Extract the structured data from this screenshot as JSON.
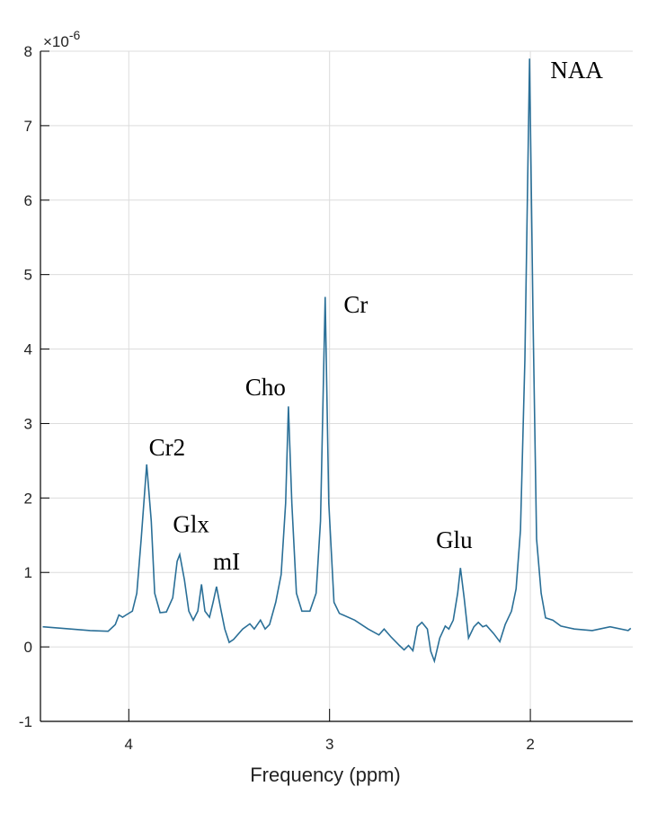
{
  "chart_data": {
    "type": "line",
    "title": "",
    "xlabel": "Frequency (ppm)",
    "ylabel": "",
    "y_exponent_label": "×10",
    "y_exponent_power": "-6",
    "xlim": [
      1.49,
      4.44
    ],
    "x_reversed": true,
    "ylim": [
      -1,
      8
    ],
    "xticks": [
      4,
      3,
      2
    ],
    "yticks": [
      -1,
      0,
      1,
      2,
      3,
      4,
      5,
      6,
      7,
      8
    ],
    "grid": true,
    "colors": {
      "line": "#2a6f97",
      "grid": "#dcdcdc",
      "axis": "#000000"
    },
    "series": [
      {
        "x": [
          4.429,
          4.192,
          4.103,
          4.067,
          4.049,
          4.031,
          4.013,
          3.982,
          3.96,
          3.938,
          3.911,
          3.888,
          3.871,
          3.844,
          3.813,
          3.781,
          3.759,
          3.746,
          3.723,
          3.701,
          3.679,
          3.656,
          3.638,
          3.621,
          3.598,
          3.58,
          3.563,
          3.54,
          3.522,
          3.5,
          3.478,
          3.433,
          3.397,
          3.375,
          3.344,
          3.321,
          3.299,
          3.268,
          3.241,
          3.219,
          3.205,
          3.188,
          3.165,
          3.138,
          3.098,
          3.067,
          3.045,
          3.022,
          3.004,
          2.978,
          2.951,
          2.875,
          2.808,
          2.754,
          2.728,
          2.696,
          2.652,
          2.629,
          2.607,
          2.585,
          2.563,
          2.54,
          2.513,
          2.496,
          2.478,
          2.451,
          2.424,
          2.406,
          2.384,
          2.362,
          2.348,
          2.33,
          2.308,
          2.281,
          2.259,
          2.237,
          2.219,
          2.183,
          2.152,
          2.125,
          2.094,
          2.071,
          2.049,
          2.027,
          2.004,
          1.987,
          1.969,
          1.946,
          1.924,
          1.888,
          1.848,
          1.781,
          1.692,
          1.603,
          1.513,
          1.5
        ],
        "y": [
          0.27,
          0.22,
          0.21,
          0.3,
          0.43,
          0.4,
          0.43,
          0.48,
          0.72,
          1.45,
          2.45,
          1.69,
          0.72,
          0.46,
          0.47,
          0.66,
          1.15,
          1.24,
          0.9,
          0.48,
          0.36,
          0.48,
          0.84,
          0.48,
          0.4,
          0.6,
          0.81,
          0.48,
          0.24,
          0.06,
          0.1,
          0.24,
          0.31,
          0.24,
          0.36,
          0.24,
          0.3,
          0.6,
          0.97,
          1.93,
          3.23,
          1.93,
          0.72,
          0.48,
          0.48,
          0.72,
          1.69,
          4.7,
          1.93,
          0.6,
          0.45,
          0.36,
          0.24,
          0.16,
          0.24,
          0.14,
          0.02,
          -0.04,
          0.02,
          -0.05,
          0.27,
          0.33,
          0.24,
          -0.06,
          -0.19,
          0.12,
          0.28,
          0.24,
          0.36,
          0.72,
          1.06,
          0.66,
          0.12,
          0.27,
          0.33,
          0.27,
          0.29,
          0.18,
          0.07,
          0.3,
          0.48,
          0.78,
          1.57,
          3.86,
          7.9,
          4.46,
          1.45,
          0.72,
          0.39,
          0.36,
          0.28,
          0.24,
          0.22,
          0.27,
          0.22,
          0.25
        ]
      }
    ],
    "annotations": [
      {
        "text": "NAA",
        "x": 1.9,
        "y": 7.64
      },
      {
        "text": "Cr",
        "x": 2.93,
        "y": 4.49
      },
      {
        "text": "Cho",
        "x": 3.42,
        "y": 3.38
      },
      {
        "text": "Cr2",
        "x": 3.9,
        "y": 2.57
      },
      {
        "text": "Glx",
        "x": 3.78,
        "y": 1.54
      },
      {
        "text": "mI",
        "x": 3.58,
        "y": 1.04
      },
      {
        "text": "Glu",
        "x": 2.47,
        "y": 1.33
      }
    ]
  }
}
